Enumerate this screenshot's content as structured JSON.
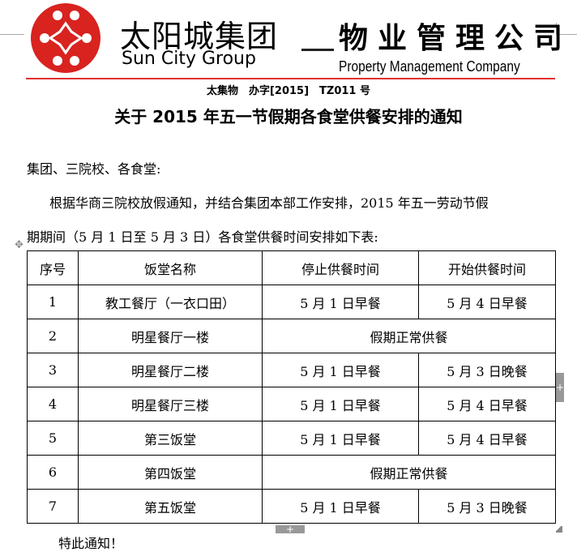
{
  "header": {
    "group_cn": "太阳城集团",
    "group_en": "Sun City Group",
    "company_cn": "物业管理公司",
    "company_en": "Property Management Company"
  },
  "doc_number": "太集物　办字[2015]　TZ011 号",
  "title": "关于 2015 年五一节假期各食堂供餐安排的通知",
  "salutation": "集团、三院校、各食堂:",
  "body_line1": "根据华商三院校放假通知，并结合集团本部工作安排，2015 年五一劳动节假",
  "body_line2": "期期间（5 月 1 日至 5 月 3 日）各食堂供餐时间安排如下表:",
  "table": {
    "headers": [
      "序号",
      "饭堂名称",
      "停止供餐时间",
      "开始供餐时间"
    ],
    "rows": [
      {
        "no": "1",
        "name": "教工餐厅（一衣口田）",
        "stop": "5 月 1 日早餐",
        "start": "5 月 4 日早餐"
      },
      {
        "no": "2",
        "name": "明星餐厅一楼",
        "merged": "假期正常供餐"
      },
      {
        "no": "3",
        "name": "明星餐厅二楼",
        "stop": "5 月 1 日早餐",
        "start": "5 月 3 日晚餐"
      },
      {
        "no": "4",
        "name": "明星餐厅三楼",
        "stop": "5 月 1 日早餐",
        "start": "5 月 4 日早餐"
      },
      {
        "no": "5",
        "name": "第三饭堂",
        "stop": "5 月 1 日早餐",
        "start": "5 月 4 日早餐"
      },
      {
        "no": "6",
        "name": "第四饭堂",
        "merged": "假期正常供餐"
      },
      {
        "no": "7",
        "name": "第五饭堂",
        "stop": "5 月 1 日早餐",
        "start": "5 月 3 日晚餐"
      }
    ]
  },
  "closing": "特此通知！",
  "colors": {
    "logo_red": "#d8231f",
    "rule_red": "#e03030"
  }
}
